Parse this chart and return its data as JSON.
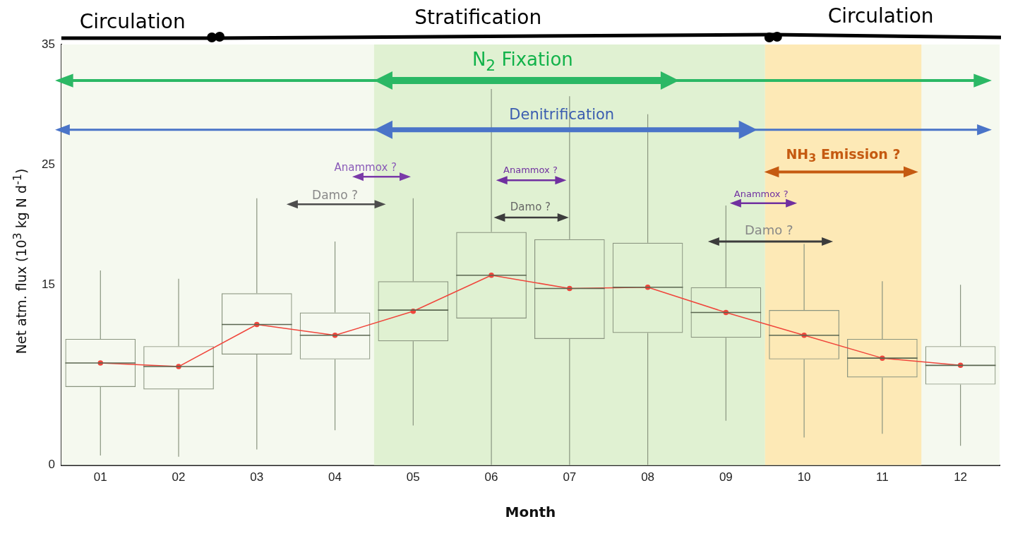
{
  "chart_data": {
    "type": "box",
    "xlabel": "Month",
    "ylabel": "Net atm. flux  (10$^{3}$ kg N d$^{-1}$)",
    "categories": [
      "01",
      "02",
      "03",
      "04",
      "05",
      "06",
      "07",
      "08",
      "09",
      "10",
      "11",
      "12"
    ],
    "ylim": [
      0,
      35
    ],
    "yticks": [
      0,
      15,
      25,
      35
    ],
    "grid": false,
    "legend": false,
    "marker": "circle",
    "series": [
      {
        "type": "box",
        "color": "#8a9580",
        "boxes": [
          {
            "low": 0.8,
            "q1": 6.5,
            "median": 8.5,
            "q3": 10.5,
            "high": 16.2
          },
          {
            "low": 0.7,
            "q1": 6.3,
            "median": 8.2,
            "q3": 9.9,
            "high": 15.5
          },
          {
            "low": 1.3,
            "q1": 9.2,
            "median": 11.7,
            "q3": 14.3,
            "high": 22.2
          },
          {
            "low": 2.9,
            "q1": 8.8,
            "median": 10.8,
            "q3": 12.7,
            "high": 18.6
          },
          {
            "low": 3.3,
            "q1": 10.3,
            "median": 12.9,
            "q3": 15.3,
            "high": 22.2
          },
          {
            "low": 0,
            "q1": 12.2,
            "median": 15.8,
            "q3": 19.4,
            "high": 31.3
          },
          {
            "low": 0,
            "q1": 10.5,
            "median": 14.7,
            "q3": 18.8,
            "high": 30.7
          },
          {
            "low": 0,
            "q1": 11.0,
            "median": 14.8,
            "q3": 18.5,
            "high": 29.2
          },
          {
            "low": 3.7,
            "q1": 10.6,
            "median": 12.7,
            "q3": 14.8,
            "high": 21.6
          },
          {
            "low": 2.3,
            "q1": 8.8,
            "median": 10.8,
            "q3": 12.9,
            "high": 18.4
          },
          {
            "low": 2.6,
            "q1": 7.3,
            "median": 8.9,
            "q3": 10.5,
            "high": 15.3
          },
          {
            "low": 1.6,
            "q1": 6.7,
            "median": 8.3,
            "q3": 9.9,
            "high": 15.0
          }
        ]
      },
      {
        "type": "line",
        "color": "#f0463c",
        "values": [
          8.5,
          8.2,
          11.7,
          10.8,
          12.8,
          15.8,
          14.7,
          14.8,
          12.7,
          10.8,
          8.9,
          8.3
        ]
      }
    ],
    "bands": [
      {
        "axis": "x",
        "from": "01",
        "to": "12",
        "color": "#f5f9ef"
      },
      {
        "axis": "x",
        "from": "05",
        "to": "09",
        "color": "#e0f1d2"
      },
      {
        "axis": "x",
        "from": "10",
        "to": "11",
        "color": "#fde9b6"
      }
    ],
    "annotations": [
      "Circulation",
      "Stratification",
      "Circulation",
      "N$_{2}$ Fixation",
      "Denitrification",
      "Anammox ?",
      "Damo ?",
      "Anammox ?",
      "Damo ?",
      "Anammox ?",
      "Damo ?",
      "NH$_{3}$ Emission ?"
    ]
  }
}
